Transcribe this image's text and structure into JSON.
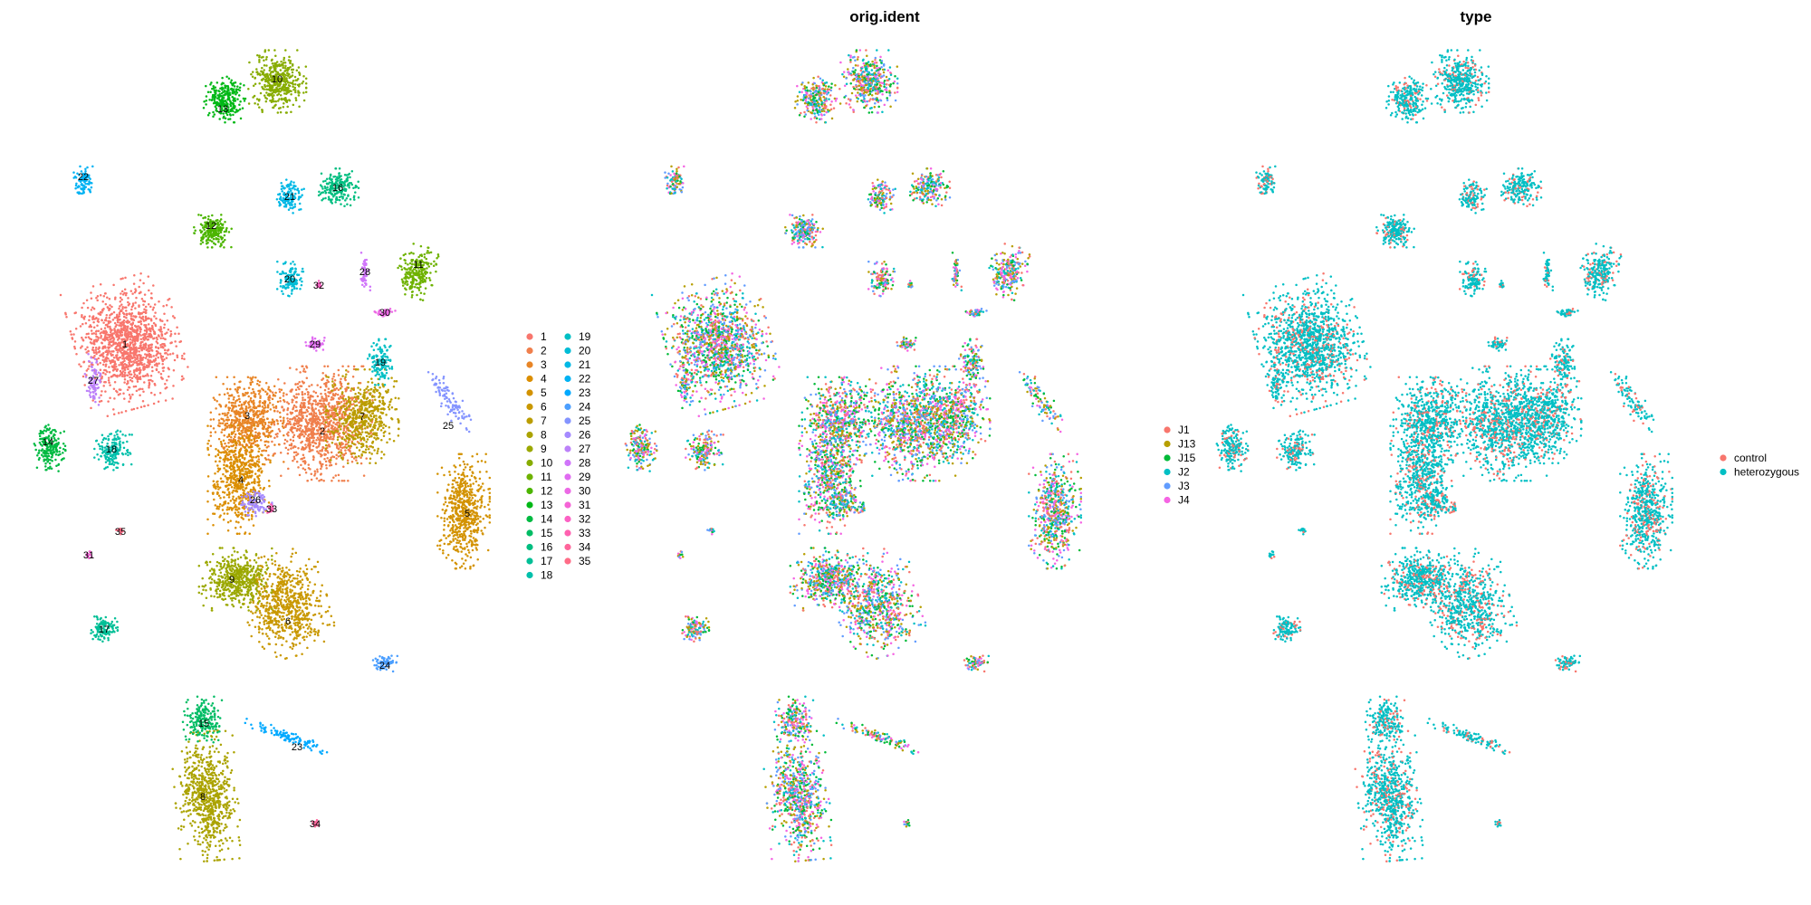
{
  "chart_data": [
    {
      "type": "scatter",
      "title": "",
      "xlabel": "",
      "ylabel": "",
      "grid": false,
      "legend_position": "right",
      "legend_columns": 2,
      "coloring": "seurat_clusters",
      "series": [
        {
          "name": "1",
          "color": "#F8766D"
        },
        {
          "name": "2",
          "color": "#F07F4C"
        },
        {
          "name": "3",
          "color": "#E88526"
        },
        {
          "name": "4",
          "color": "#DB8E00"
        },
        {
          "name": "5",
          "color": "#D39200"
        },
        {
          "name": "6",
          "color": "#C99800"
        },
        {
          "name": "7",
          "color": "#BB9D00"
        },
        {
          "name": "8",
          "color": "#ABA300"
        },
        {
          "name": "9",
          "color": "#9BA800"
        },
        {
          "name": "10",
          "color": "#87AC00"
        },
        {
          "name": "11",
          "color": "#6EB200"
        },
        {
          "name": "12",
          "color": "#4CB500"
        },
        {
          "name": "13",
          "color": "#00B816"
        },
        {
          "name": "14",
          "color": "#00BA42"
        },
        {
          "name": "15",
          "color": "#00BC64"
        },
        {
          "name": "16",
          "color": "#00BE80"
        },
        {
          "name": "17",
          "color": "#00BF96"
        },
        {
          "name": "18",
          "color": "#00C0AB"
        },
        {
          "name": "19",
          "color": "#00BFC4"
        },
        {
          "name": "20",
          "color": "#00BCD6"
        },
        {
          "name": "21",
          "color": "#00B8E5"
        },
        {
          "name": "22",
          "color": "#00B2F3"
        },
        {
          "name": "23",
          "color": "#00A9FF"
        },
        {
          "name": "24",
          "color": "#4C9FFF"
        },
        {
          "name": "25",
          "color": "#8494FF"
        },
        {
          "name": "26",
          "color": "#A58AFF"
        },
        {
          "name": "27",
          "color": "#BC81F9"
        },
        {
          "name": "28",
          "color": "#D075FA"
        },
        {
          "name": "29",
          "color": "#E06BF1"
        },
        {
          "name": "30",
          "color": "#EC69E5"
        },
        {
          "name": "31",
          "color": "#F564D6"
        },
        {
          "name": "32",
          "color": "#FC61C4"
        },
        {
          "name": "33",
          "color": "#FF61B0"
        },
        {
          "name": "34",
          "color": "#FF659B"
        },
        {
          "name": "35",
          "color": "#FF6C87"
        }
      ],
      "annotations": [
        "1",
        "2",
        "3",
        "4",
        "5",
        "6",
        "7",
        "8",
        "9",
        "10",
        "11",
        "12",
        "13",
        "14",
        "15",
        "16",
        "17",
        "18",
        "19",
        "20",
        "21",
        "22",
        "23",
        "24",
        "25",
        "26",
        "27",
        "28",
        "29",
        "30",
        "31",
        "32",
        "33",
        "34",
        "35"
      ]
    },
    {
      "type": "scatter",
      "title": "orig.ident",
      "xlabel": "",
      "ylabel": "",
      "grid": false,
      "legend_position": "right",
      "coloring": "orig.ident",
      "series": [
        {
          "name": "J1",
          "color": "#F8766D"
        },
        {
          "name": "J13",
          "color": "#B79F00"
        },
        {
          "name": "J15",
          "color": "#00BA38"
        },
        {
          "name": "J2",
          "color": "#00BFC4"
        },
        {
          "name": "J3",
          "color": "#619CFF"
        },
        {
          "name": "J4",
          "color": "#F564E3"
        }
      ]
    },
    {
      "type": "scatter",
      "title": "type",
      "xlabel": "",
      "ylabel": "",
      "grid": false,
      "legend_position": "right",
      "coloring": "type",
      "series": [
        {
          "name": "control",
          "color": "#F8766D"
        },
        {
          "name": "heterozygous",
          "color": "#00BFC4"
        }
      ]
    }
  ]
}
